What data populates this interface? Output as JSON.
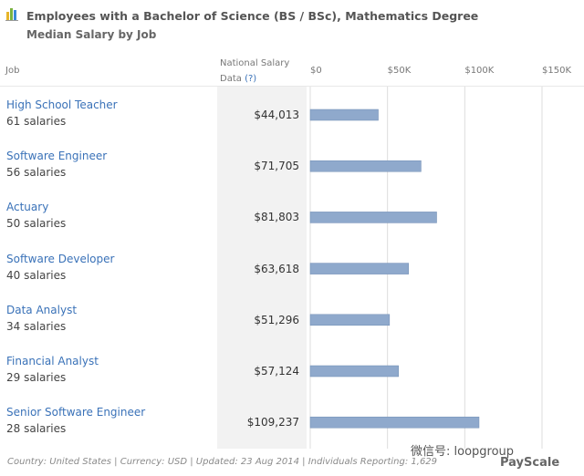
{
  "header": {
    "title": "Employees with a Bachelor of Science (BS / BSc), Mathematics Degree",
    "subtitle": "Median Salary by Job"
  },
  "columns": {
    "job": "Job",
    "national_salary_line1": "National Salary",
    "national_salary_line2": "Data",
    "help_link": "(?)"
  },
  "chart_data": {
    "type": "bar",
    "orientation": "horizontal",
    "categories": [
      "High School Teacher",
      "Software Engineer",
      "Actuary",
      "Software Developer",
      "Data Analyst",
      "Financial Analyst",
      "Senior Software Engineer"
    ],
    "counts": [
      "61 salaries",
      "56 salaries",
      "50 salaries",
      "40 salaries",
      "34 salaries",
      "29 salaries",
      "28 salaries"
    ],
    "values": [
      44013,
      71705,
      81803,
      63618,
      51296,
      57124,
      109237
    ],
    "value_labels": [
      "$44,013",
      "$71,705",
      "$81,803",
      "$63,618",
      "$51,296",
      "$57,124",
      "$109,237"
    ],
    "xlim": [
      0,
      150000
    ],
    "xticks": [
      0,
      50000,
      100000,
      150000
    ],
    "xtick_labels": [
      "$0",
      "$50K",
      "$100K",
      "$150K"
    ],
    "grid": true,
    "bar_color": "#8fa9cc"
  },
  "footer": {
    "text": "Country: United States | Currency: USD | Updated: 23 Aug 2014 | Individuals Reporting: 1,629"
  },
  "watermark": {
    "text": "微信号: loopgroup",
    "brand": "PayScale"
  },
  "colors": {
    "link": "#3a72b8",
    "bar": "#8fa9cc",
    "grid": "#dddddd"
  }
}
